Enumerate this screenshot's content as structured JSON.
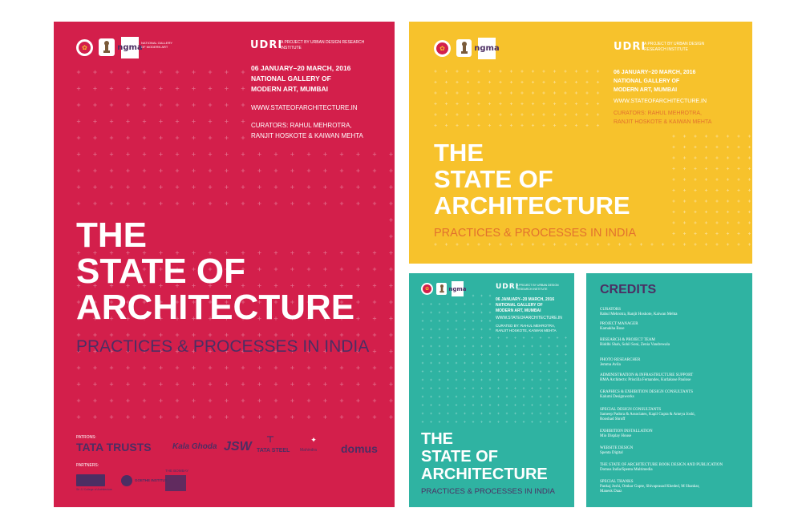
{
  "colors": {
    "red": "#d31f4b",
    "yellow": "#f7c22c",
    "teal": "#2fb3a2",
    "purple": "#4c2e63",
    "orange": "#e2712e",
    "white": "#ffffff"
  },
  "big_poster": {
    "logos": [
      "ri-logo-icon",
      "government-emblem-icon",
      "ngma-logo"
    ],
    "ngma_text": "ngma",
    "ngma_caption": "NATIONAL GALLERY OF MODERN ART",
    "udri_mark": "UDRI",
    "udri_caption": "A PROJECT BY URBAN DESIGN RESEARCH INSTITUTE",
    "dates": "06 JANUARY–20 MARCH, 2016",
    "venue_1": "NATIONAL GALLERY OF",
    "venue_2": "MODERN ART, MUMBAI",
    "url": "WWW.STATEOFARCHITECTURE.IN",
    "curators_1": "CURATORS: RAHUL MEHROTRA,",
    "curators_2": "RANJIT HOSKOTE & KAIWAN MEHTA",
    "title_1": "THE",
    "title_2": "STATE OF",
    "title_3": "ARCHITECTURE",
    "subtitle": "PRACTICES & PROCESSES IN INDIA",
    "patrons_label": "PATRONS:",
    "patrons": [
      "TATA TRUSTS",
      "Kala Ghoda",
      "JSW",
      "TATA STEEL",
      "Mahindra",
      "domus"
    ],
    "partners_label": "PARTNERS:",
    "partners": [
      "Sir JJ College of Architecture",
      "GOETHE INSTITUT",
      "THE BOMBAY"
    ]
  },
  "yellow_poster": {
    "udri_mark": "UDRI",
    "udri_caption_1": "A PROJECT BY URBAN DESIGN",
    "udri_caption_2": "RESEARCH INSTITUTE",
    "dates": "06 JANUARY–20 MARCH, 2016",
    "venue_1": "NATIONAL GALLERY OF",
    "venue_2": "MODERN ART, MUMBAI",
    "url": "WWW.STATEOFARCHITECTURE.IN",
    "curators_1": "CURATORS: RAHUL MEHROTRA,",
    "curators_2": "RANJIT HOSKOTE & KAIWAN MEHTA",
    "title_1": "THE",
    "title_2": "STATE OF",
    "title_3": "ARCHITECTURE",
    "subtitle": "PRACTICES & PROCESSES IN INDIA"
  },
  "teal_poster": {
    "udri_mark": "UDRI",
    "udri_caption_1": "A PROJECT BY URBAN DESIGN",
    "udri_caption_2": "RESEARCH INSTITUTE",
    "dates": "06 JANUARY–20 MARCH, 2016",
    "venue_1": "NATIONAL GALLERY OF",
    "venue_2": "MODERN ART, MUMBAI",
    "url": "WWW.STATEOFARCHITECTURE.IN",
    "curators_1": "CURATED BY: RAHUL MEHROTRA,",
    "curators_2": "RANJIT HOSKOTE, KAIWAN MEHTA",
    "title_1": "THE",
    "title_2": "STATE OF",
    "title_3": "ARCHITECTURE",
    "subtitle": "PRACTICES & PROCESSES IN INDIA"
  },
  "credits": {
    "title": "CREDITS",
    "items": [
      {
        "heading": "CURATORS",
        "value": "Rahul Mehrotra, Ranjit Hoskote, Kaiwan Mehta"
      },
      {
        "heading": "PROJECT MANAGER",
        "value": "Kamakha Bose"
      },
      {
        "heading": "RESEARCH & PROJECT TEAM",
        "value": "Riddhi Shah, Sohil Soni, Zenia Vandrewala"
      },
      {
        "heading": "PHOTO RESEARCHER",
        "value": "Jemma Avila"
      },
      {
        "heading": "ADMINISTRATION & INFRASTRUCTURE SUPPORT",
        "value": "RMA Architects: Priscilla Fernandes, Kurlakose Paulose"
      },
      {
        "heading": "GRAPHICS & EXHIBITION DESIGN CONSULTANTS",
        "value": "Kalumi Designworks"
      },
      {
        "heading": "SPECIAL DESIGN CONSULTANTS",
        "value": "Sameep Padora & Associates, Kapil Gupta & Ameya Joshi,",
        "value2": "Rooshad Shroff"
      },
      {
        "heading": "EXHIBITION INSTALLATION",
        "value": "Mio Display House"
      },
      {
        "heading": "WEBSITE DESIGN",
        "value": "Spenta Digital"
      },
      {
        "heading": "THE STATE OF ARCHITECTURE BOOK DESIGN AND PUBLICATION",
        "value": "Domus India/Spenta Multimedia"
      },
      {
        "heading": "SPECIAL THANKS",
        "value": "Pankaj Joshi, Omkar Gupte, Shivaprasad Kheded, M Shankar,",
        "value2": "Manesk Daaz"
      }
    ]
  }
}
